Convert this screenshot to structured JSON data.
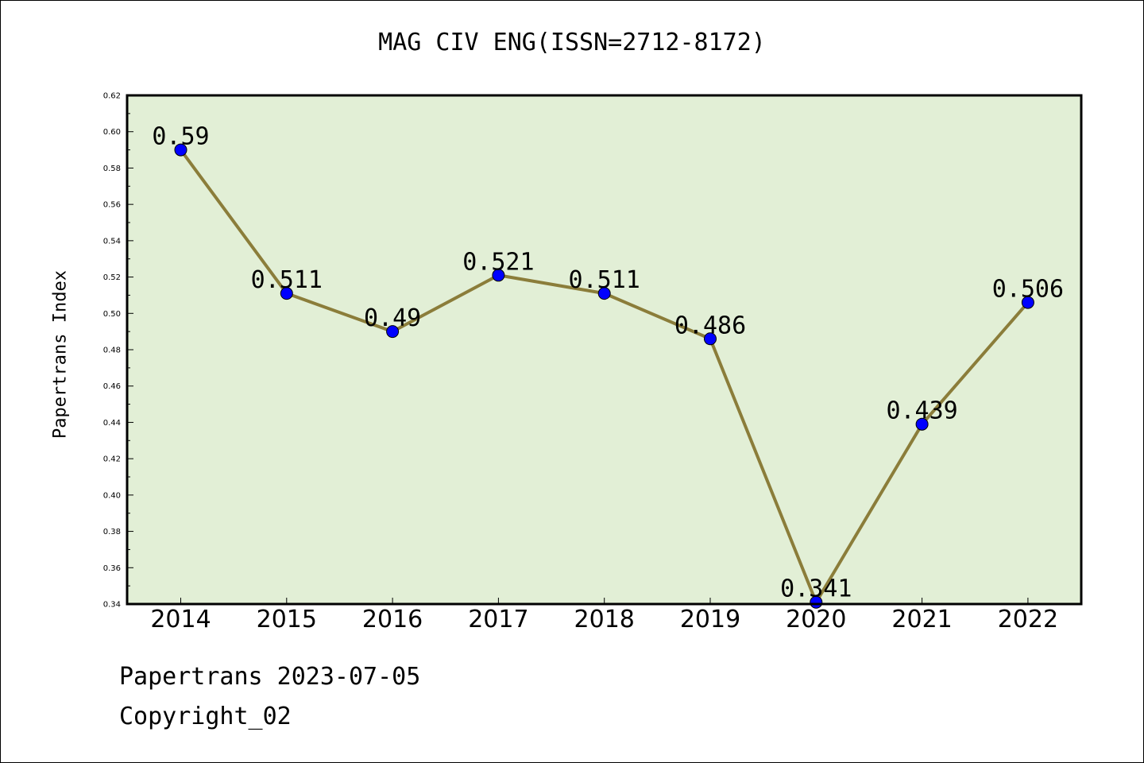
{
  "chart_data": {
    "type": "line",
    "title": "MAG CIV ENG(ISSN=2712-8172)",
    "xlabel": "",
    "ylabel": "Papertrans Index",
    "categories": [
      "2014",
      "2015",
      "2016",
      "2017",
      "2018",
      "2019",
      "2020",
      "2021",
      "2022"
    ],
    "series": [
      {
        "values": [
          0.59,
          0.511,
          0.49,
          0.521,
          0.511,
          0.486,
          0.341,
          0.439,
          0.506
        ],
        "data_labels": [
          "0.59",
          "0.511",
          "0.49",
          "0.521",
          "0.511",
          "0.486",
          "0.341",
          "0.439",
          "0.506"
        ]
      }
    ],
    "ylim": [
      0.34,
      0.62
    ],
    "yticks": [
      "0.34",
      "0.36",
      "0.38",
      "0.40",
      "0.42",
      "0.44",
      "0.46",
      "0.48",
      "0.50",
      "0.52",
      "0.54",
      "0.56",
      "0.58",
      "0.60",
      "0.62"
    ],
    "grid": false,
    "legend": "none",
    "colors": {
      "plot_background": "#e2efd6",
      "line": "#8b7d3a",
      "marker": "#0000ff",
      "axes": "#000000"
    }
  },
  "footer": {
    "line1": "Papertrans 2023-07-05",
    "line2": "Copyright_02"
  }
}
